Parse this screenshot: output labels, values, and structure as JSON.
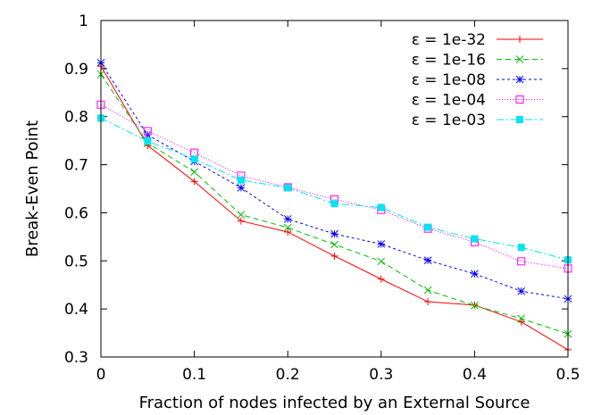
{
  "chart_data": {
    "type": "line",
    "title": "",
    "xlabel": "Fraction of nodes infected by an External Source",
    "ylabel": "Break-Even Point",
    "xlim": [
      0,
      0.5
    ],
    "ylim": [
      0.3,
      1
    ],
    "x_ticks": [
      "0",
      "0.1",
      "0.2",
      "0.3",
      "0.4",
      "0.5"
    ],
    "y_ticks": [
      "0.3",
      "0.4",
      "0.5",
      "0.6",
      "0.7",
      "0.8",
      "0.9",
      "1"
    ],
    "grid": false,
    "legend_position": "top-right",
    "x": [
      0,
      0.05,
      0.1,
      0.15,
      0.2,
      0.25,
      0.3,
      0.35,
      0.4,
      0.45,
      0.5
    ],
    "series": [
      {
        "name": "ε = 1e-32",
        "color": "#ff0000",
        "marker": "plus",
        "dash": "",
        "values": [
          0.905,
          0.74,
          0.665,
          0.583,
          0.56,
          0.51,
          0.462,
          0.415,
          0.408,
          0.373,
          0.315
        ]
      },
      {
        "name": "ε = 1e-16",
        "color": "#00c000",
        "marker": "cross",
        "dash": "6,4",
        "values": [
          0.888,
          0.745,
          0.685,
          0.596,
          0.569,
          0.534,
          0.499,
          0.439,
          0.407,
          0.38,
          0.348
        ]
      },
      {
        "name": "ε = 1e-08",
        "color": "#0000ff",
        "marker": "star",
        "dash": "3,3",
        "values": [
          0.912,
          0.762,
          0.707,
          0.652,
          0.587,
          0.556,
          0.535,
          0.501,
          0.473,
          0.437,
          0.421
        ]
      },
      {
        "name": "ε = 1e-04",
        "color": "#ff00ff",
        "marker": "square-open",
        "dash": "1,2",
        "values": [
          0.825,
          0.77,
          0.725,
          0.677,
          0.653,
          0.628,
          0.606,
          0.567,
          0.539,
          0.499,
          0.484
        ]
      },
      {
        "name": "ε = 1e-03",
        "color": "#00e5ee",
        "marker": "square-filled",
        "dash": "8,3,2,3",
        "values": [
          0.797,
          0.749,
          0.712,
          0.668,
          0.652,
          0.619,
          0.611,
          0.57,
          0.546,
          0.528,
          0.502
        ]
      }
    ]
  }
}
